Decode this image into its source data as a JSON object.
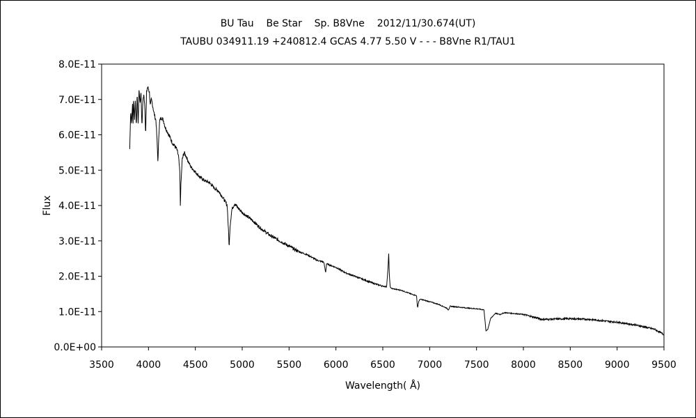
{
  "chart_data": {
    "type": "line",
    "title": "BU Tau    Be Star    Sp. B8Vne    2012/11/30.674(UT)",
    "subtitle": "TAUBU 034911.19 +240812.4 GCAS 4.77 5.50 V - - - B8Vne R1/TAU1",
    "xlabel": "Wavelength( Å)",
    "ylabel": "Flux",
    "xlim": [
      3500,
      9500
    ],
    "ylim": [
      0,
      8e-11
    ],
    "x_ticks": [
      "3500",
      "4000",
      "4500",
      "5000",
      "5500",
      "6000",
      "6500",
      "7000",
      "7500",
      "8000",
      "8500",
      "9000",
      "9500"
    ],
    "y_ticks": [
      "0.0E+00",
      "1.0E-11",
      "2.0E-11",
      "3.0E-11",
      "4.0E-11",
      "5.0E-11",
      "6.0E-11",
      "7.0E-11",
      "8.0E-11"
    ],
    "grid": false,
    "legend": "none",
    "series": [
      {
        "color": "#000000",
        "x": [
          3800,
          3810,
          3820,
          3830,
          3835,
          3840,
          3850,
          3860,
          3870,
          3880,
          3890,
          3900,
          3910,
          3920,
          3930,
          3940,
          3950,
          3960,
          3970,
          3980,
          3990,
          4000,
          4010,
          4020,
          4030,
          4040,
          4060,
          4080,
          4090,
          4100,
          4102,
          4110,
          4120,
          4140,
          4160,
          4180,
          4200,
          4250,
          4300,
          4320,
          4335,
          4340,
          4345,
          4360,
          4380,
          4400,
          4450,
          4500,
          4550,
          4600,
          4650,
          4700,
          4750,
          4800,
          4840,
          4855,
          4861,
          4870,
          4890,
          4920,
          4950,
          5000,
          5100,
          5200,
          5300,
          5400,
          5500,
          5600,
          5700,
          5800,
          5870,
          5890,
          5900,
          5950,
          6000,
          6100,
          6200,
          6300,
          6400,
          6500,
          6540,
          6555,
          6563,
          6570,
          6580,
          6600,
          6700,
          6800,
          6860,
          6870,
          6885,
          6900,
          7000,
          7100,
          7180,
          7200,
          7220,
          7300,
          7400,
          7500,
          7580,
          7600,
          7620,
          7650,
          7700,
          7750,
          7800,
          8000,
          8100,
          8200,
          8500,
          8700,
          9000,
          9200,
          9400,
          9500
        ],
        "y": [
          5.6e-11,
          6.7e-11,
          6.3e-11,
          6.9e-11,
          6.1e-11,
          7.1e-11,
          6.4e-11,
          7e-11,
          6.2e-11,
          7.2e-11,
          6.3e-11,
          7.3e-11,
          6.9e-11,
          7.2e-11,
          6.2e-11,
          7e-11,
          7.1e-11,
          6.9e-11,
          6e-11,
          7.2e-11,
          7.35e-11,
          7.3e-11,
          7.2e-11,
          6.8e-11,
          7e-11,
          6.9e-11,
          6.6e-11,
          6.4e-11,
          5.9e-11,
          5.3e-11,
          5.25e-11,
          6e-11,
          6.4e-11,
          6.5e-11,
          6.4e-11,
          6.2e-11,
          6.1e-11,
          5.8e-11,
          5.6e-11,
          5.4e-11,
          4.9e-11,
          4e-11,
          4.5e-11,
          5.3e-11,
          5.5e-11,
          5.4e-11,
          5.1e-11,
          4.95e-11,
          4.8e-11,
          4.7e-11,
          4.65e-11,
          4.5e-11,
          4.4e-11,
          4.2e-11,
          4e-11,
          3.2e-11,
          2.8e-11,
          3.4e-11,
          3.9e-11,
          4.05e-11,
          3.95e-11,
          3.8e-11,
          3.6e-11,
          3.35e-11,
          3.15e-11,
          3e-11,
          2.85e-11,
          2.7e-11,
          2.6e-11,
          2.45e-11,
          2.4e-11,
          2.1e-11,
          2.35e-11,
          2.3e-11,
          2.25e-11,
          2.1e-11,
          2e-11,
          1.9e-11,
          1.8e-11,
          1.72e-11,
          1.7e-11,
          2.2e-11,
          2.65e-11,
          2e-11,
          1.68e-11,
          1.65e-11,
          1.6e-11,
          1.5e-11,
          1.45e-11,
          1.1e-11,
          1.3e-11,
          1.35e-11,
          1.28e-11,
          1.2e-11,
          1.1e-11,
          1.05e-11,
          1.15e-11,
          1.13e-11,
          1.1e-11,
          1.08e-11,
          1.05e-11,
          4.5e-12,
          5e-12,
          8e-12,
          9.5e-12,
          9.2e-12,
          9.7e-12,
          9.2e-12,
          8.5e-12,
          7.8e-12,
          8e-12,
          7.8e-12,
          7e-12,
          6.2e-12,
          5e-12,
          3.5e-12
        ]
      }
    ]
  }
}
